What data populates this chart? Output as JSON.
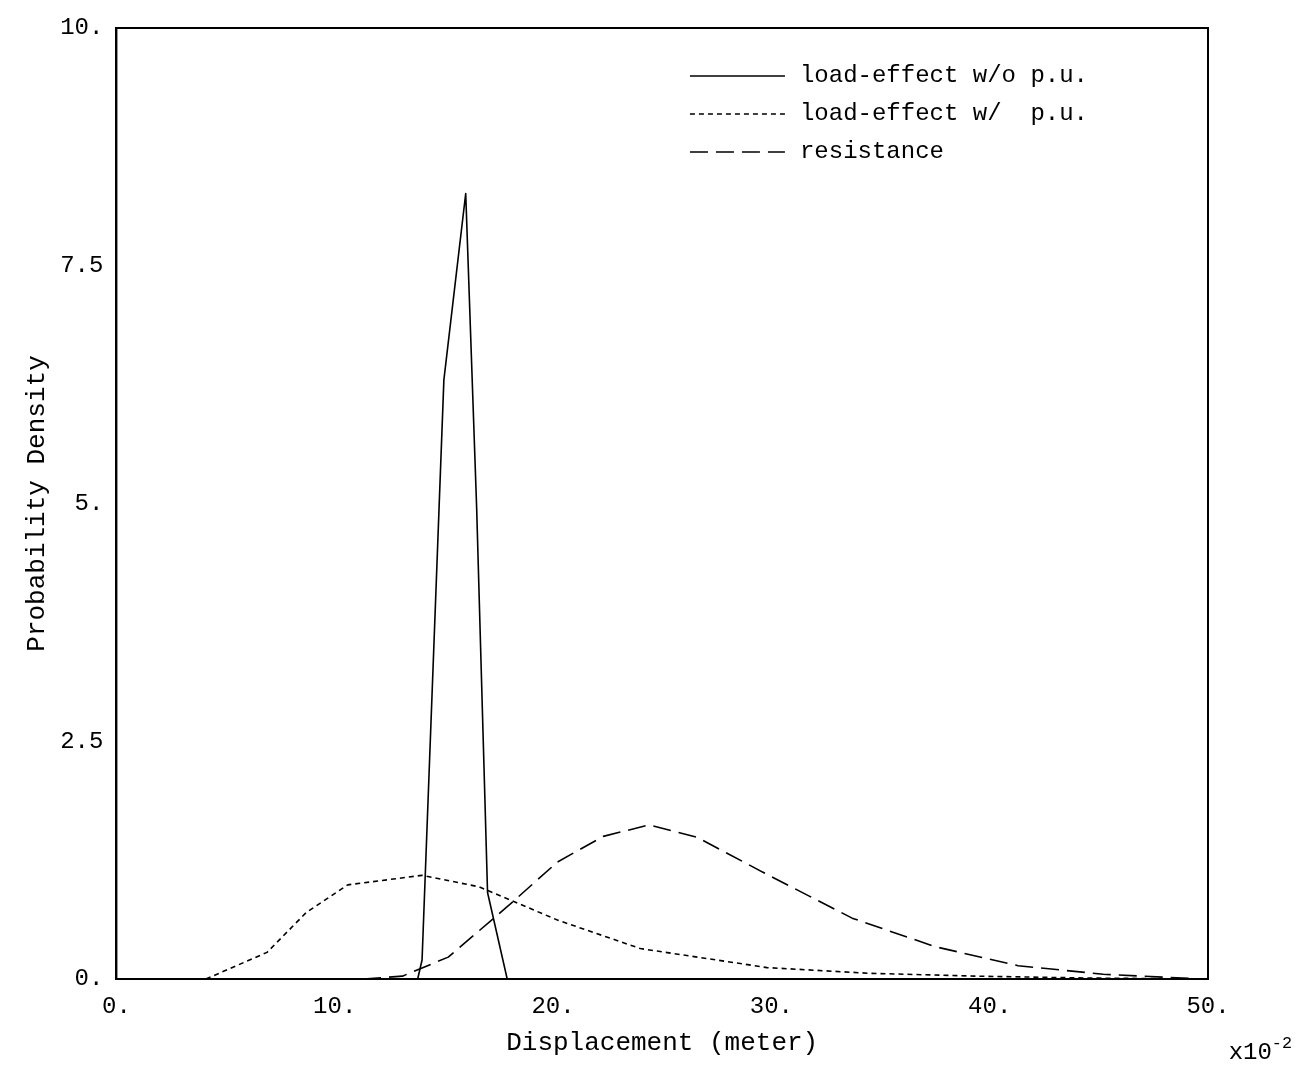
{
  "chart_data": {
    "type": "line",
    "xlabel": "Displacement (meter)",
    "ylabel": "Probability Density",
    "xlim": [
      0,
      50
    ],
    "ylim": [
      0,
      10
    ],
    "xticks": [
      {
        "value": 0,
        "label": "0."
      },
      {
        "value": 10,
        "label": "10."
      },
      {
        "value": 20,
        "label": "20."
      },
      {
        "value": 30,
        "label": "30."
      },
      {
        "value": 40,
        "label": "40."
      },
      {
        "value": 50,
        "label": "50."
      }
    ],
    "yticks": [
      {
        "value": 0,
        "label": "0."
      },
      {
        "value": 2.5,
        "label": "2.5"
      },
      {
        "value": 5,
        "label": "5."
      },
      {
        "value": 7.5,
        "label": "7.5"
      },
      {
        "value": 10,
        "label": "10."
      }
    ],
    "grid": false,
    "legend": "top right",
    "marker": "none",
    "annotations": [
      "x10$^{-2}$"
    ],
    "series": [
      {
        "name": "load-effect w/o p.u.",
        "color": "#000000",
        "line_style": "solid",
        "x": [
          13.8,
          14.0,
          15.0,
          16.0,
          16.5,
          17.0,
          17.9
        ],
        "values": [
          0,
          0.2,
          6.3,
          8.26,
          4.96,
          0.91,
          0
        ]
      },
      {
        "name": "load-effect w/  p.u.",
        "color": "#000000",
        "line_style": "dotted",
        "x": [
          4.1,
          6.9,
          8.7,
          10.6,
          14.0,
          16.6,
          20.2,
          24.0,
          29.8,
          34.5,
          39.4,
          44.5,
          49.7
        ],
        "values": [
          0,
          0.28,
          0.7,
          0.99,
          1.09,
          0.97,
          0.62,
          0.32,
          0.12,
          0.06,
          0.03,
          0.01,
          0
        ]
      },
      {
        "name": "resistance",
        "color": "#000000",
        "line_style": "dashed",
        "x": [
          11.3,
          13.1,
          15.2,
          17.9,
          20.2,
          22.3,
          24.4,
          26.6,
          29.8,
          33.7,
          37.5,
          41.3,
          45.2,
          49.7
        ],
        "values": [
          0,
          0.03,
          0.23,
          0.76,
          1.23,
          1.5,
          1.62,
          1.49,
          1.1,
          0.64,
          0.34,
          0.14,
          0.05,
          0
        ]
      }
    ]
  }
}
